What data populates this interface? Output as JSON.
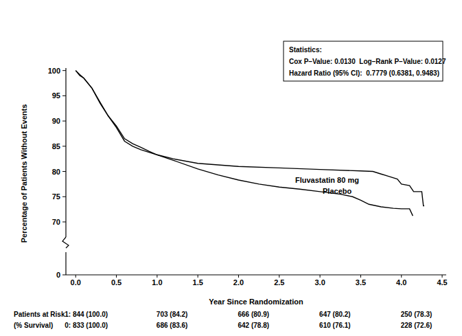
{
  "chart_data": {
    "type": "line",
    "x_label": "Year Since Randomization",
    "y_label": "Percentage of Patients Without Events",
    "xlim": [
      -0.12,
      4.55
    ],
    "xticks": [
      {
        "value": 0,
        "label": "0.0"
      },
      {
        "value": 0.5,
        "label": "0.5"
      },
      {
        "value": 1,
        "label": "1.0"
      },
      {
        "value": 1.5,
        "label": "1.5"
      },
      {
        "value": 2,
        "label": "2.0"
      },
      {
        "value": 2.5,
        "label": "2.5"
      },
      {
        "value": 3,
        "label": "3.0"
      },
      {
        "value": 3.5,
        "label": "3.5"
      },
      {
        "value": 4,
        "label": "4.0"
      },
      {
        "value": 4.5,
        "label": "4.5"
      }
    ],
    "ylim": [
      0,
      100.5
    ],
    "y_break": [
      0,
      67
    ],
    "yticks": [
      0,
      70,
      75,
      80,
      85,
      90,
      95,
      100
    ],
    "grid": false,
    "line_style": "solid",
    "marker": "none",
    "annotations": [
      "Statistics:",
      "Cox P–Value: 0.0130  Log–Rank P–Value: 0.0127",
      "Hazard Ratio (95% CI):  0.7779 (0.6381, 0.9483)"
    ],
    "series": [
      {
        "name": "Fluvastatin 80 mg",
        "color": "#000000",
        "x": [
          0,
          0.05,
          0.1,
          0.2,
          0.3,
          0.4,
          0.5,
          0.6,
          0.7,
          0.8,
          0.9,
          1.0,
          1.2,
          1.5,
          2.0,
          2.5,
          3.0,
          3.5,
          3.65,
          3.75,
          3.85,
          3.95,
          4.0,
          4.1,
          4.15,
          4.25,
          4.27,
          4.28
        ],
        "values": [
          100,
          99,
          98.5,
          96.5,
          93.5,
          91,
          89,
          86.5,
          85.5,
          84.8,
          84,
          83.3,
          82.5,
          81.6,
          81,
          80.7,
          80.4,
          80.1,
          80,
          79.5,
          79,
          78.5,
          77.5,
          77.2,
          76,
          76,
          73.2,
          73.2
        ]
      },
      {
        "name": "Placebo",
        "color": "#000000",
        "x": [
          0,
          0.05,
          0.1,
          0.2,
          0.3,
          0.4,
          0.5,
          0.6,
          0.7,
          0.8,
          0.9,
          1.0,
          1.2,
          1.5,
          1.75,
          2.0,
          2.25,
          2.5,
          2.75,
          3.0,
          3.25,
          3.4,
          3.5,
          3.6,
          3.75,
          3.9,
          4.0,
          4.1,
          4.14
        ],
        "values": [
          100,
          99.2,
          98.5,
          96.5,
          93.7,
          91,
          88.7,
          86,
          85,
          84.3,
          83.8,
          83.3,
          82.2,
          80.5,
          79.3,
          78.3,
          77.5,
          76.9,
          76.5,
          76,
          75.5,
          75,
          74.3,
          73.5,
          73,
          72.7,
          72.6,
          72.6,
          71.2
        ]
      }
    ],
    "at_risk": {
      "label": "Patients at Risk",
      "sublabel": "(% Survival)",
      "x": [
        0,
        1,
        2,
        3,
        4
      ],
      "rows": [
        [
          "1: 844 (100.0)",
          "703 (84.2)",
          "666 (80.9)",
          "647 (80.2)",
          "250 (78.3)"
        ],
        [
          "0: 833 (100.0)",
          "686 (83.6)",
          "642 (78.8)",
          "610 (76.1)",
          "228 (72.6)"
        ]
      ]
    }
  }
}
